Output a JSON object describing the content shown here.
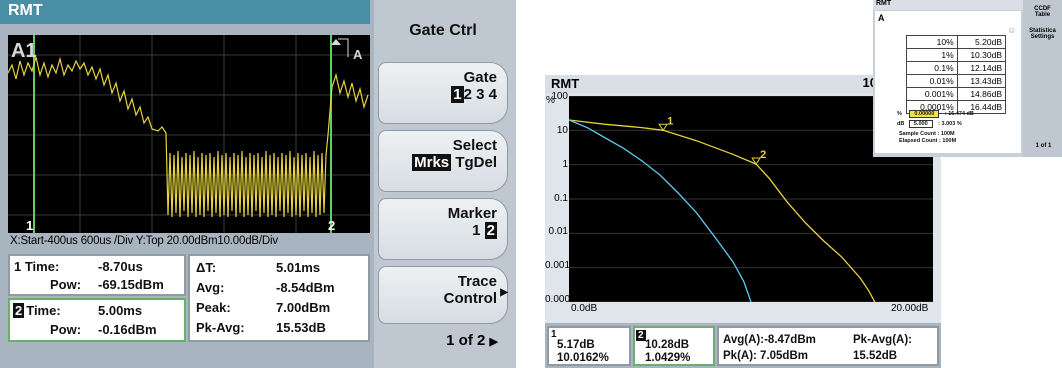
{
  "gate_screen": {
    "title": "RMT",
    "trace_label": "A1",
    "trace_tag": "A",
    "gate_marker_1": "1",
    "gate_marker_2": "2",
    "axis_info": "X:Start-400us  600us /Div  Y:Top 20.00dBm10.00dB/Div",
    "marker1": {
      "time_label": "1 Time:",
      "time_value": "-8.70us",
      "pow_label": "Pow:",
      "pow_value": "-69.15dBm"
    },
    "marker2": {
      "num": "2",
      "time_label": "Time:",
      "time_value": "5.00ms",
      "pow_label": "Pow:",
      "pow_value": "-0.16dBm"
    },
    "stats": {
      "dt_label": "ΔT:",
      "dt_value": "5.01ms",
      "avg_label": "Avg:",
      "avg_value": "-8.54dBm",
      "peak_label": "Peak:",
      "peak_value": "7.00dBm",
      "pkavg_label": "Pk-Avg:",
      "pkavg_value": "15.53dB"
    },
    "softkeys": {
      "header": "Gate Ctrl",
      "gate_label": "Gate",
      "gate_selected": "1",
      "gate_others": "2 3 4",
      "select_label": "Select",
      "select_selected": "Mrks",
      "select_other": "TgDel",
      "marker_label": "Marker",
      "marker_first": "1",
      "marker_selected": "2",
      "trace_label_1": "Trace",
      "trace_label_2": "Control",
      "page": "1 of 2"
    }
  },
  "ccdf_screen": {
    "title": "RMT",
    "gate_label": "100M",
    "y_unit": "%",
    "y_ticks": [
      "100",
      "10",
      "1",
      "0.1",
      "0.01",
      "0.001",
      "0.0001"
    ],
    "x_start": "0.0dB",
    "x_end": "20.00dB",
    "marker_tag_1": "1",
    "marker_tag_2": "2",
    "marker1": {
      "num": "1",
      "db": "5.17dB",
      "pct": "10.0162%"
    },
    "marker2": {
      "num": "2",
      "db": "10.28dB",
      "pct": "1.0429%"
    },
    "avg": "Avg(A):-8.47dBm",
    "pk": "Pk(A): 7.05dBm",
    "pkavg_label": "Pk-Avg(A):",
    "pkavg_value": "15.52dB",
    "colors": {
      "trace_yellow": "#e6d23c",
      "trace_cyan": "#5fc7e8"
    },
    "chart_data": {
      "type": "line",
      "xlabel": "",
      "ylabel": "%",
      "xlim": [
        0,
        20
      ],
      "ylim": [
        0.0001,
        100
      ],
      "yscale": "log",
      "series": [
        {
          "values": [
            [
              0,
              20
            ],
            [
              2,
              15
            ],
            [
              4,
              12
            ],
            [
              5.17,
              10.0
            ],
            [
              7,
              5
            ],
            [
              9,
              2
            ],
            [
              10.28,
              1.04
            ],
            [
              11,
              0.4
            ],
            [
              12,
              0.08
            ],
            [
              13,
              0.02
            ],
            [
              14,
              0.006
            ],
            [
              15,
              0.002
            ],
            [
              16,
              0.0005
            ],
            [
              16.5,
              0.0002
            ],
            [
              16.8,
              0.0001
            ]
          ]
        },
        {
          "values": [
            [
              0,
              20
            ],
            [
              1,
              12
            ],
            [
              2,
              6
            ],
            [
              3,
              3
            ],
            [
              4,
              1.3
            ],
            [
              5,
              0.5
            ],
            [
              6,
              0.15
            ],
            [
              7,
              0.04
            ],
            [
              8,
              0.008
            ],
            [
              9,
              0.0015
            ],
            [
              9.6,
              0.0004
            ],
            [
              10,
              0.0001
            ]
          ]
        }
      ]
    }
  },
  "table_screen": {
    "title": "RMT",
    "trace": "A",
    "rows": [
      {
        "pct": "10%",
        "db": "5.20dB"
      },
      {
        "pct": "1%",
        "db": "10.30dB"
      },
      {
        "pct": "0.1%",
        "db": "12.14dB"
      },
      {
        "pct": "0.01%",
        "db": "13.43dB"
      },
      {
        "pct": "0.001%",
        "db": "14.86dB"
      },
      {
        "pct": "0.0001%",
        "db": "16.44dB"
      }
    ],
    "pct_field_label": "%",
    "pct_field_value": "0.00000",
    "pct_result": ": 16.474 dB",
    "db_field_label": "dB",
    "db_field_value": "5.000",
    "db_result": ": 3.003 %",
    "sample_count": "Sample Count :  100M",
    "elapsed_count": "Elapsed Count :  100M",
    "softkey_header_1": "CCDF",
    "softkey_header_2": "Table",
    "softkey_stats_1": "Statistica",
    "softkey_stats_2": "Settings",
    "page": "1 of 1"
  }
}
